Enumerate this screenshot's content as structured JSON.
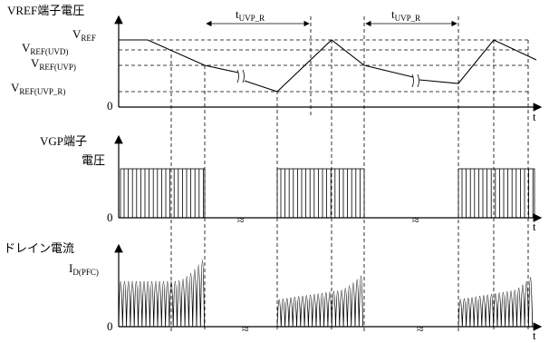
{
  "panels": {
    "vref": {
      "title": "VREF端子電圧",
      "level_vref_main": "V",
      "level_vref_sub": "REF",
      "level_uvd_main": "V",
      "level_uvd_sub": "REF(UVD)",
      "level_uvp_main": "V",
      "level_uvp_sub": "REF(UVP)",
      "level_uvpr_main": "V",
      "level_uvpr_sub": "REF(UVP_R)",
      "zero": "0",
      "time": "t",
      "interval_main": "t",
      "interval_sub": "UVP_R"
    },
    "vgp": {
      "title_line1": "VGP端子",
      "title_line2": "電圧",
      "zero": "0",
      "time": "t"
    },
    "drain": {
      "title": "ドレイン電流",
      "level_main": "I",
      "level_sub": "D(PFC)",
      "zero": "0",
      "time": "t"
    }
  },
  "break_symbol": "≈"
}
